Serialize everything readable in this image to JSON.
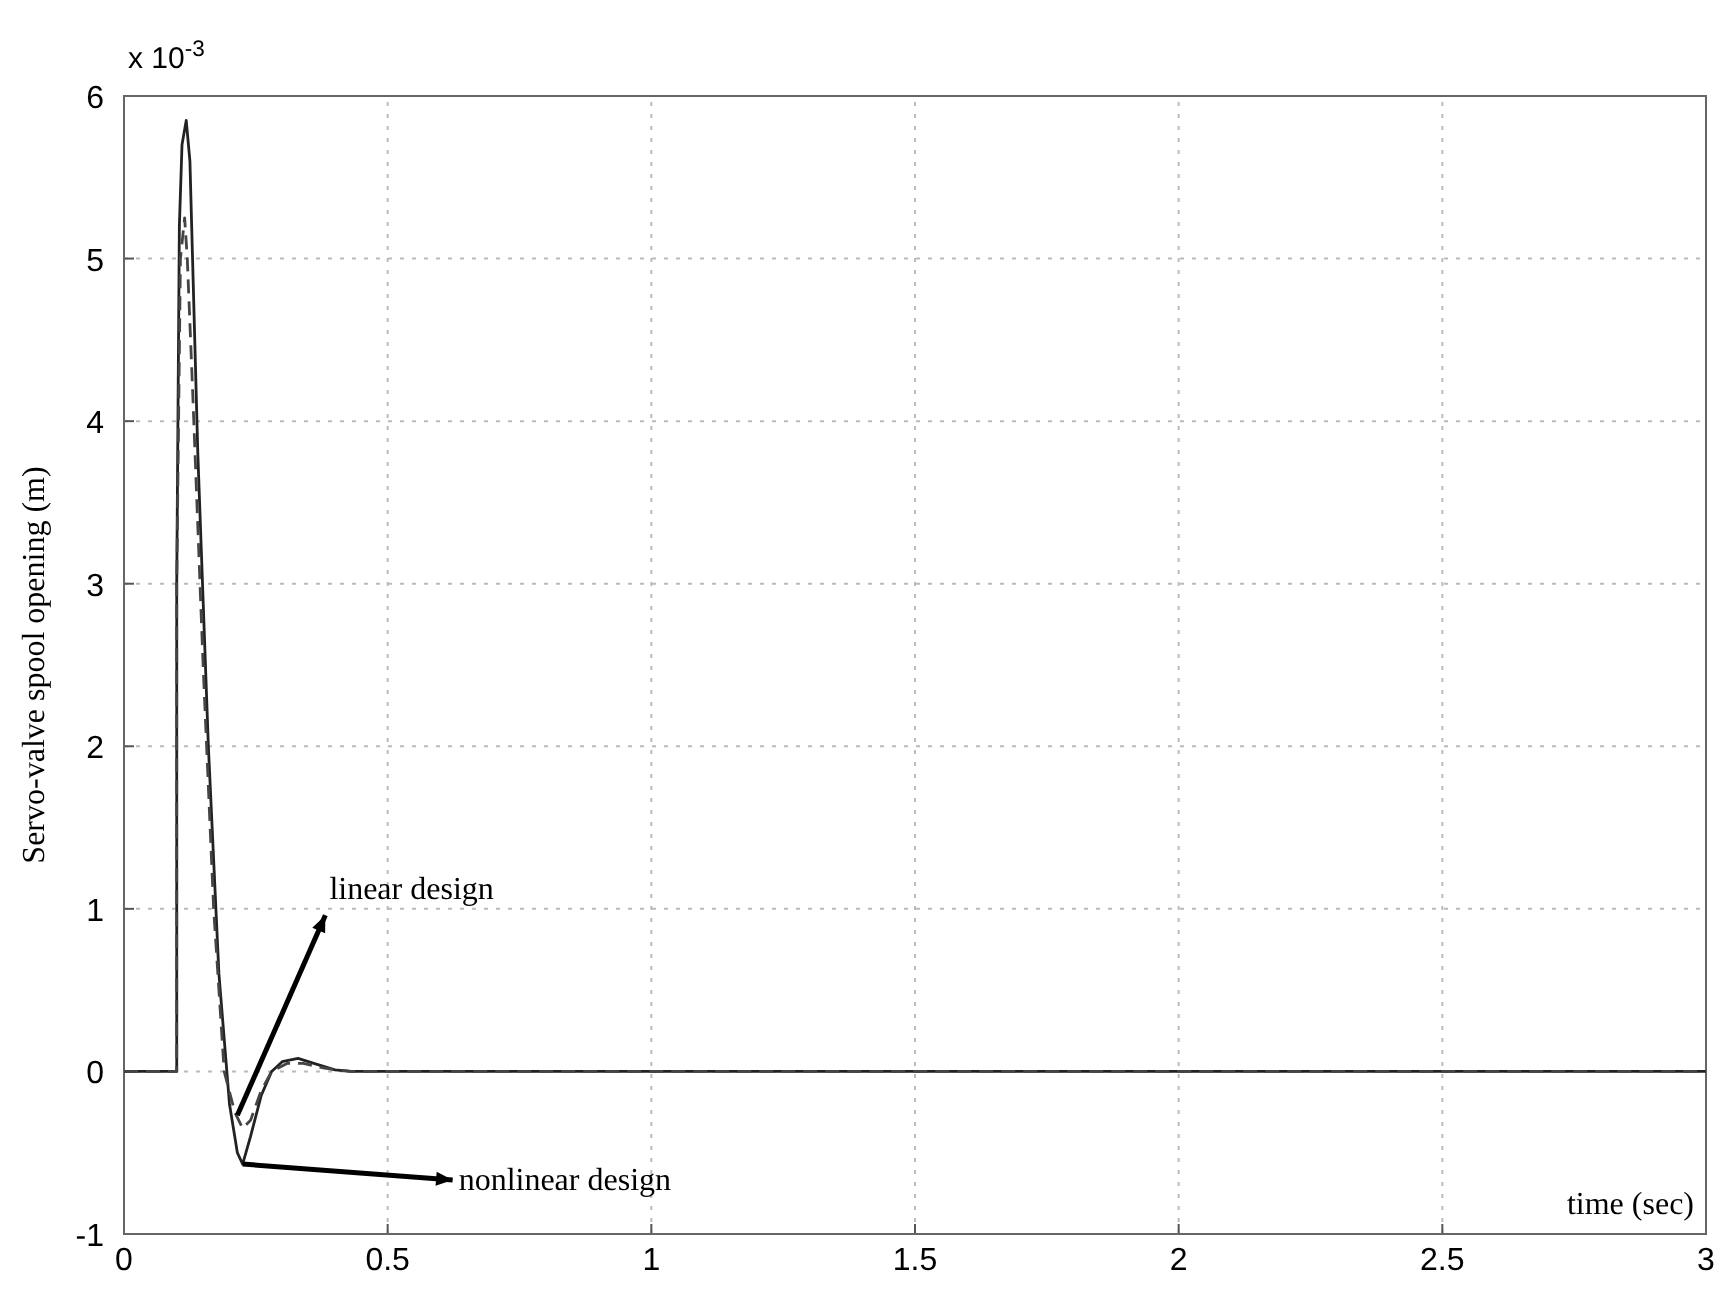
{
  "chart_data": {
    "type": "line",
    "xlabel": "time (sec)",
    "ylabel": "Servo-valve spool opening (m)",
    "xlim": [
      0,
      3
    ],
    "xticks": [
      0,
      0.5,
      1,
      1.5,
      2,
      2.5,
      3
    ],
    "ylim": [
      -1,
      6
    ],
    "yticks": [
      -1,
      0,
      1,
      2,
      3,
      4,
      5,
      6
    ],
    "grid": true,
    "marker": "none",
    "series": [
      {
        "color": "#222222",
        "line_style": "solid",
        "x": [
          0,
          0.1,
          0.1,
          0.105,
          0.11,
          0.118,
          0.125,
          0.13,
          0.14,
          0.16,
          0.18,
          0.2,
          0.215,
          0.225,
          0.24,
          0.26,
          0.28,
          0.3,
          0.33,
          0.36,
          0.4,
          0.43,
          3
        ],
        "values": [
          0,
          0,
          3,
          5.2,
          5.7,
          5.85,
          5.6,
          5,
          3.8,
          2,
          0.6,
          -0.2,
          -0.5,
          -0.57,
          -0.4,
          -0.15,
          0,
          0.06,
          0.08,
          0.05,
          0.01,
          0,
          0
        ]
      },
      {
        "color": "#444444",
        "line_style": "dashed",
        "x": [
          0,
          0.1,
          0.1,
          0.107,
          0.115,
          0.12,
          0.13,
          0.15,
          0.17,
          0.19,
          0.21,
          0.225,
          0.24,
          0.26,
          0.28,
          0.31,
          0.34,
          0.38,
          0.43,
          3
        ],
        "values": [
          0,
          0,
          3,
          5,
          5.25,
          5.0,
          4.2,
          2.5,
          1.0,
          0,
          -0.25,
          -0.35,
          -0.3,
          -0.12,
          0,
          0.05,
          0.05,
          0.02,
          0,
          0
        ]
      }
    ],
    "annotations": [
      "x 10$^{-3}$",
      {
        "text": "linear design",
        "x": 0.215,
        "y": -0.27
      },
      {
        "text": "nonlinear design",
        "x": 0.225,
        "y": -0.57
      }
    ]
  }
}
